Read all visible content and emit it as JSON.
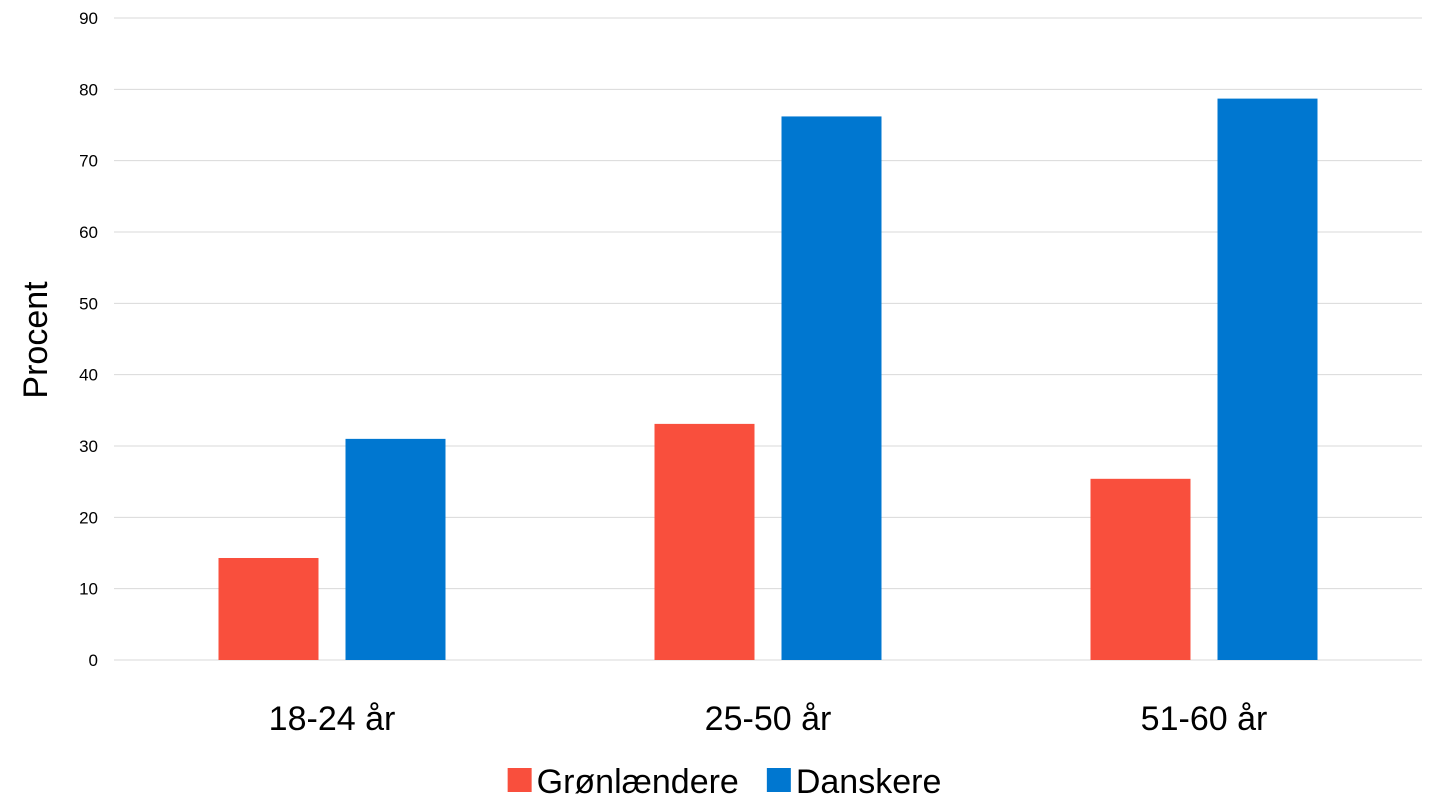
{
  "chart_data": {
    "type": "bar",
    "categories": [
      "18-24 år",
      "25-50 år",
      "51-60 år"
    ],
    "series": [
      {
        "name": "Grønlændere",
        "color": "#F94F3D",
        "values": [
          14.3,
          33.1,
          25.4
        ]
      },
      {
        "name": "Danskere",
        "color": "#0077D0",
        "values": [
          31.0,
          76.2,
          78.7
        ]
      }
    ],
    "title": "",
    "xlabel": "",
    "ylabel": "Procent",
    "ylim": [
      0,
      90
    ],
    "yticks": [
      0,
      10,
      20,
      30,
      40,
      50,
      60,
      70,
      80,
      90
    ],
    "grid": true,
    "legend_position": "bottom"
  }
}
